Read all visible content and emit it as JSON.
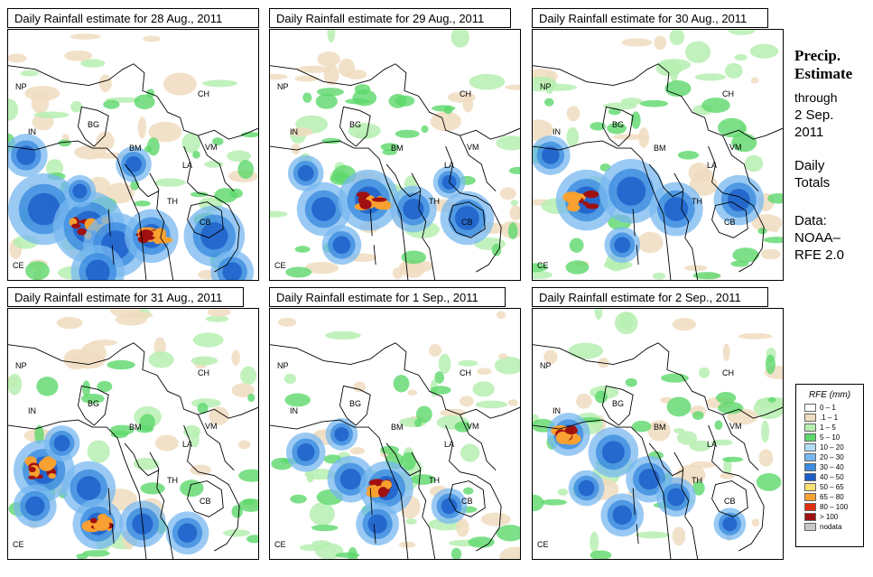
{
  "panels": [
    {
      "title": "Daily Rainfall estimate for  28 Aug., 2011"
    },
    {
      "title": "Daily Rainfall estimate for  29 Aug., 2011"
    },
    {
      "title": "Daily Rainfall estimate for  30 Aug., 2011"
    },
    {
      "title": "Daily Rainfall estimate for  31 Aug., 2011"
    },
    {
      "title": "Daily Rainfall estimate for  1 Sep., 2011"
    },
    {
      "title": "Daily Rainfall estimate for  2 Sep., 2011"
    }
  ],
  "country_labels": {
    "np": "NP",
    "ch": "CH",
    "in": "IN",
    "bg": "BG",
    "bm": "BM",
    "vm": "VM",
    "la": "LA",
    "th": "TH",
    "cb": "CB",
    "ce": "CE"
  },
  "sidebar": {
    "heading": [
      "Precip.",
      "Estimate"
    ],
    "through": [
      "through",
      "2 Sep.",
      "2011"
    ],
    "daily": [
      "Daily",
      "Totals"
    ],
    "data_source": [
      "Data:",
      "NOAA–",
      "RFE 2.0"
    ]
  },
  "legend": {
    "title": "RFE (mm)",
    "items": [
      {
        "label": "0 – 1",
        "color": "#ffffff"
      },
      {
        "label": ".1 – 1",
        "color": "#f0dcc0"
      },
      {
        "label": "1 – 5",
        "color": "#b6eeb0"
      },
      {
        "label": "5 – 10",
        "color": "#5cd86c"
      },
      {
        "label": "10 – 20",
        "color": "#b4dcf8"
      },
      {
        "label": "20 – 30",
        "color": "#78b8f0"
      },
      {
        "label": "30 – 40",
        "color": "#3c8ce0"
      },
      {
        "label": "40 – 50",
        "color": "#1c5cc8"
      },
      {
        "label": "50 – 65",
        "color": "#f8e070"
      },
      {
        "label": "65 – 80",
        "color": "#f8a030"
      },
      {
        "label": "80 – 100",
        "color": "#e03010"
      },
      {
        "label": "> 100",
        "color": "#a01010"
      },
      {
        "label": "nodata",
        "color": "#c8c8c8"
      }
    ]
  }
}
